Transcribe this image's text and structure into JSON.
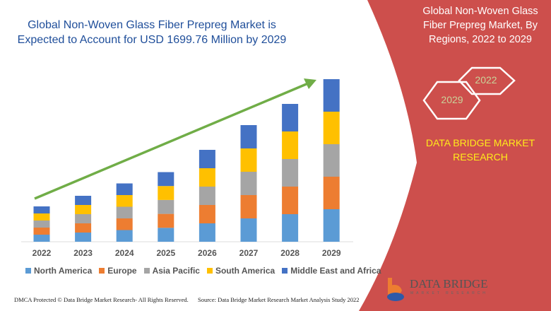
{
  "title": "Global Non-Woven Glass Fiber Prepreg Market is Expected to Account for USD 1699.76 Million by 2029",
  "side_panel": {
    "title": "Global Non-Woven Glass Fiber Prepreg Market, By Regions, 2022 to 2029",
    "hex_start": "2022",
    "hex_end": "2029",
    "brand": "DATA BRIDGE MARKET RESEARCH",
    "color": "#cd4f4c"
  },
  "logo": {
    "name": "DATA BRIDGE",
    "sub": "MARKET RESEARCH"
  },
  "footer": {
    "copyright": "DMCA Protected © Data Bridge Market Research- All Rights Reserved.",
    "source": "Source: Data Bridge Market Research Market Analysis Study 2022"
  },
  "chart_data": {
    "type": "bar",
    "stacked": true,
    "title": "Global Non-Woven Glass Fiber Prepreg Market is Expected to Account for USD 1699.76 Million by 2029",
    "categories": [
      "2022",
      "2023",
      "2024",
      "2025",
      "2026",
      "2027",
      "2028",
      "2029"
    ],
    "series": [
      {
        "name": "North America",
        "color": "#5b9bd5",
        "values": [
          10,
          13,
          16.5,
          19.7,
          26,
          33,
          39,
          46
        ]
      },
      {
        "name": "Europe",
        "color": "#ed7d31",
        "values": [
          10,
          13,
          16.5,
          19.7,
          26,
          33,
          39,
          46
        ]
      },
      {
        "name": "Asia Pacific",
        "color": "#a5a5a5",
        "values": [
          10,
          13,
          16.5,
          19.7,
          26,
          33,
          39,
          46
        ]
      },
      {
        "name": "South America",
        "color": "#ffc000",
        "values": [
          10,
          13,
          16.5,
          19.7,
          26,
          33,
          39,
          46
        ]
      },
      {
        "name": "Middle East and Africa",
        "color": "#4472c4",
        "values": [
          10,
          13,
          16.5,
          19.7,
          26,
          33,
          39,
          46
        ]
      }
    ],
    "y_axis_shown": false,
    "grid": false,
    "legend_position": "bottom",
    "trend_arrow_color": "#70ad47"
  }
}
